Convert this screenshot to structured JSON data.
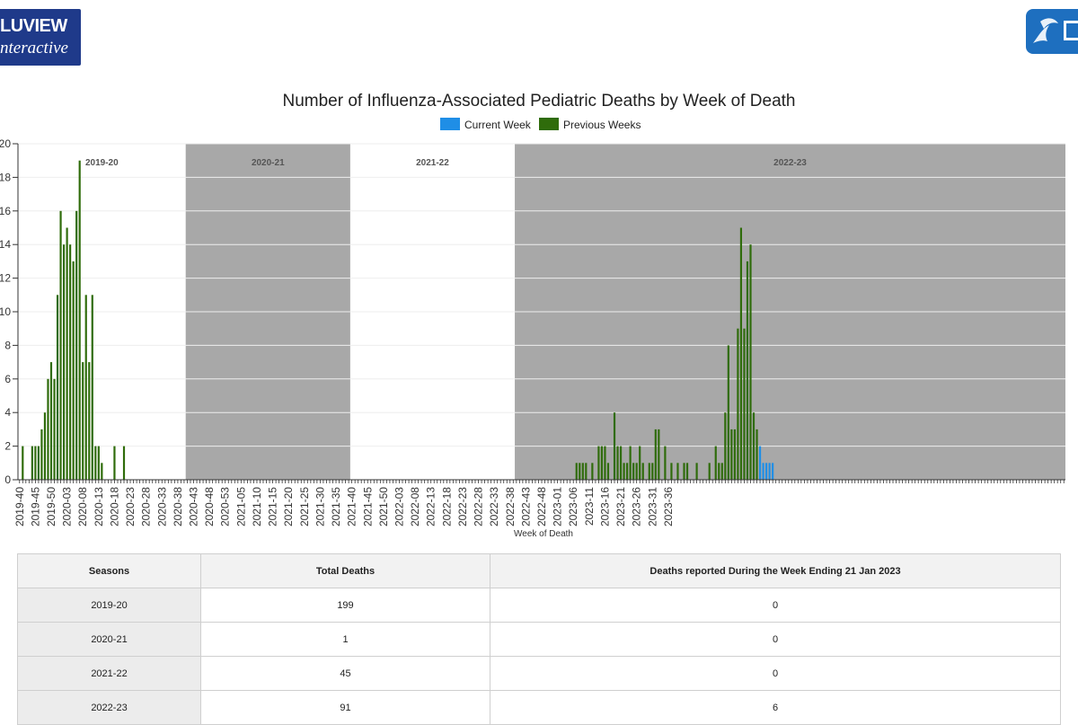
{
  "header": {
    "left_logo": {
      "line1": "LUVIEW",
      "line2": "nteractive"
    },
    "right_logo": {
      "icon": "hhs-eagle-icon",
      "color": "#1e6fbf"
    }
  },
  "chart_data": {
    "type": "bar",
    "title": "Number of Influenza-Associated Pediatric Deaths by Week of Death",
    "xlabel": "Week of Death",
    "ylabel": "",
    "ylim": [
      0,
      20
    ],
    "legend": {
      "placement": "top-center",
      "entries": [
        "Current Week",
        "Previous Weeks"
      ]
    },
    "colors": {
      "current": "#1f8ee6",
      "previous": "#2f6c0b",
      "shade": "#a8a8a8"
    },
    "seasons": [
      {
        "label": "2019-20",
        "shaded": false
      },
      {
        "label": "2020-21",
        "shaded": true
      },
      {
        "label": "2021-22",
        "shaded": false
      },
      {
        "label": "2022-23",
        "shaded": true
      }
    ],
    "x_tick_labels": [
      "2019-40",
      "2019-45",
      "2019-50",
      "2020-03",
      "2020-08",
      "2020-13",
      "2020-18",
      "2020-23",
      "2020-28",
      "2020-33",
      "2020-38",
      "2020-43",
      "2020-48",
      "2020-53",
      "2021-05",
      "2021-10",
      "2021-15",
      "2021-20",
      "2021-25",
      "2021-30",
      "2021-35",
      "2021-40",
      "2021-45",
      "2021-50",
      "2022-03",
      "2022-08",
      "2022-13",
      "2022-18",
      "2022-23",
      "2022-28",
      "2022-33",
      "2022-38",
      "2022-43",
      "2022-48",
      "2023-01",
      "2023-06",
      "2023-11",
      "2023-16",
      "2023-21",
      "2023-26",
      "2023-31",
      "2023-36"
    ],
    "series": [
      {
        "name": "Previous Weeks",
        "values": [
          0,
          2,
          0,
          0,
          2,
          2,
          2,
          3,
          4,
          6,
          7,
          6,
          11,
          16,
          14,
          15,
          14,
          13,
          16,
          19,
          7,
          11,
          7,
          11,
          2,
          2,
          1,
          0,
          0,
          0,
          2,
          0,
          0,
          2,
          0,
          0,
          0,
          0,
          0,
          0,
          0,
          0,
          0,
          0,
          0,
          0,
          0,
          0,
          0,
          0,
          0,
          0,
          0,
          0,
          0,
          0,
          0,
          0,
          0,
          0,
          0,
          0,
          0,
          0,
          0,
          0,
          0,
          0,
          0,
          0,
          0,
          0,
          0,
          0,
          0,
          0,
          0,
          0,
          0,
          0,
          0,
          0,
          0,
          0,
          0,
          0,
          0,
          0,
          0,
          0,
          0,
          0,
          0,
          0,
          0,
          0,
          0,
          0,
          0,
          0,
          0,
          0,
          0,
          0,
          0,
          0,
          0,
          0,
          0,
          0,
          0,
          0,
          0,
          0,
          0,
          0,
          0,
          0,
          0,
          0,
          0,
          0,
          0,
          0,
          0,
          0,
          0,
          0,
          0,
          0,
          0,
          0,
          0,
          0,
          0,
          0,
          0,
          0,
          0,
          0,
          0,
          0,
          0,
          0,
          0,
          0,
          0,
          0,
          0,
          0,
          0,
          0,
          0,
          0,
          0,
          0,
          0,
          0,
          0,
          0,
          0,
          0,
          0,
          0,
          0,
          0,
          0,
          0,
          0,
          0,
          0,
          0,
          0,
          0,
          0,
          0,
          1,
          1,
          1,
          1,
          0,
          1,
          0,
          2,
          2,
          2,
          1,
          0,
          4,
          2,
          2,
          1,
          1,
          2,
          1,
          1,
          2,
          1,
          0,
          1,
          1,
          3,
          3,
          0,
          2,
          0,
          1,
          0,
          1,
          0,
          1,
          1,
          0,
          0,
          1,
          0,
          0,
          0,
          1,
          0,
          2,
          1,
          1,
          4,
          8,
          3,
          3,
          9,
          15,
          9,
          13,
          14,
          4,
          3,
          0,
          0,
          0,
          0,
          0,
          0,
          0,
          0,
          0,
          0,
          0,
          0,
          0,
          0,
          0,
          0,
          0,
          0,
          0,
          0,
          0,
          0,
          0,
          0,
          0,
          0,
          0,
          0,
          0,
          0,
          0,
          0,
          0,
          0,
          0,
          0,
          0,
          0,
          0,
          0,
          0,
          0,
          0,
          0,
          0,
          0,
          0,
          0,
          0,
          0,
          0,
          0,
          0,
          0,
          0,
          0,
          0,
          0,
          0,
          0,
          0,
          0,
          0,
          0,
          0,
          0,
          0,
          0,
          0,
          0,
          0,
          0,
          0,
          0,
          0,
          0,
          0,
          0,
          0,
          0,
          0,
          0,
          0,
          0,
          0,
          0,
          0,
          0,
          0,
          0,
          0,
          0,
          0,
          0,
          0,
          0,
          0
        ]
      },
      {
        "name": "Current Week",
        "values": [
          0,
          0,
          0,
          0,
          0,
          0,
          0,
          0,
          0,
          0,
          0,
          0,
          0,
          0,
          0,
          0,
          0,
          0,
          0,
          0,
          0,
          0,
          0,
          0,
          0,
          0,
          0,
          0,
          0,
          0,
          0,
          0,
          0,
          0,
          0,
          0,
          0,
          0,
          0,
          0,
          0,
          0,
          0,
          0,
          0,
          0,
          0,
          0,
          0,
          0,
          0,
          0,
          0,
          0,
          0,
          0,
          0,
          0,
          0,
          0,
          0,
          0,
          0,
          0,
          0,
          0,
          0,
          0,
          0,
          0,
          0,
          0,
          0,
          0,
          0,
          0,
          0,
          0,
          0,
          0,
          0,
          0,
          0,
          0,
          0,
          0,
          0,
          0,
          0,
          0,
          0,
          0,
          0,
          0,
          0,
          0,
          0,
          0,
          0,
          0,
          0,
          0,
          0,
          0,
          0,
          0,
          0,
          0,
          0,
          0,
          0,
          0,
          0,
          0,
          0,
          0,
          0,
          0,
          0,
          0,
          0,
          0,
          0,
          0,
          0,
          0,
          0,
          0,
          0,
          0,
          0,
          0,
          0,
          0,
          0,
          0,
          0,
          0,
          0,
          0,
          0,
          0,
          0,
          0,
          0,
          0,
          0,
          0,
          0,
          0,
          0,
          0,
          0,
          0,
          0,
          0,
          0,
          0,
          0,
          0,
          0,
          0,
          0,
          0,
          0,
          0,
          0,
          0,
          0,
          0,
          0,
          0,
          0,
          0,
          0,
          0,
          0,
          0,
          0,
          0,
          0,
          0,
          0,
          0,
          0,
          0,
          0,
          0,
          0,
          0,
          0,
          0,
          0,
          0,
          0,
          0,
          0,
          0,
          0,
          0,
          0,
          0,
          0,
          0,
          0,
          0,
          0,
          0,
          0,
          0,
          0,
          0,
          0,
          0,
          0,
          0,
          0,
          0,
          0,
          0,
          0,
          0,
          0,
          0,
          0,
          0,
          0,
          0,
          0,
          0,
          0,
          0,
          0,
          0,
          2,
          1,
          1,
          1,
          1,
          0,
          0,
          0,
          0,
          0,
          0,
          0,
          0,
          0,
          0,
          0,
          0,
          0,
          0,
          0,
          0,
          0,
          0,
          0,
          0,
          0,
          0,
          0,
          0,
          0,
          0,
          0,
          0,
          0,
          0,
          0,
          0,
          0,
          0,
          0,
          0,
          0,
          0,
          0,
          0,
          0,
          0,
          0,
          0,
          0,
          0,
          0,
          0,
          0,
          0,
          0,
          0,
          0,
          0,
          0,
          0,
          0,
          0,
          0,
          0,
          0,
          0,
          0,
          0,
          0,
          0,
          0,
          0,
          0,
          0,
          0,
          0,
          0,
          0,
          0,
          0,
          0,
          0,
          0,
          0,
          0,
          0,
          0,
          0,
          0,
          0,
          0,
          0,
          0,
          0,
          0,
          0,
          0
        ]
      }
    ]
  },
  "table": {
    "headers": [
      "Seasons",
      "Total Deaths",
      "Deaths reported During the Week Ending 21 Jan 2023"
    ],
    "rows": [
      [
        "2019-20",
        "199",
        "0"
      ],
      [
        "2020-21",
        "1",
        "0"
      ],
      [
        "2021-22",
        "45",
        "0"
      ],
      [
        "2022-23",
        "91",
        "6"
      ]
    ]
  }
}
